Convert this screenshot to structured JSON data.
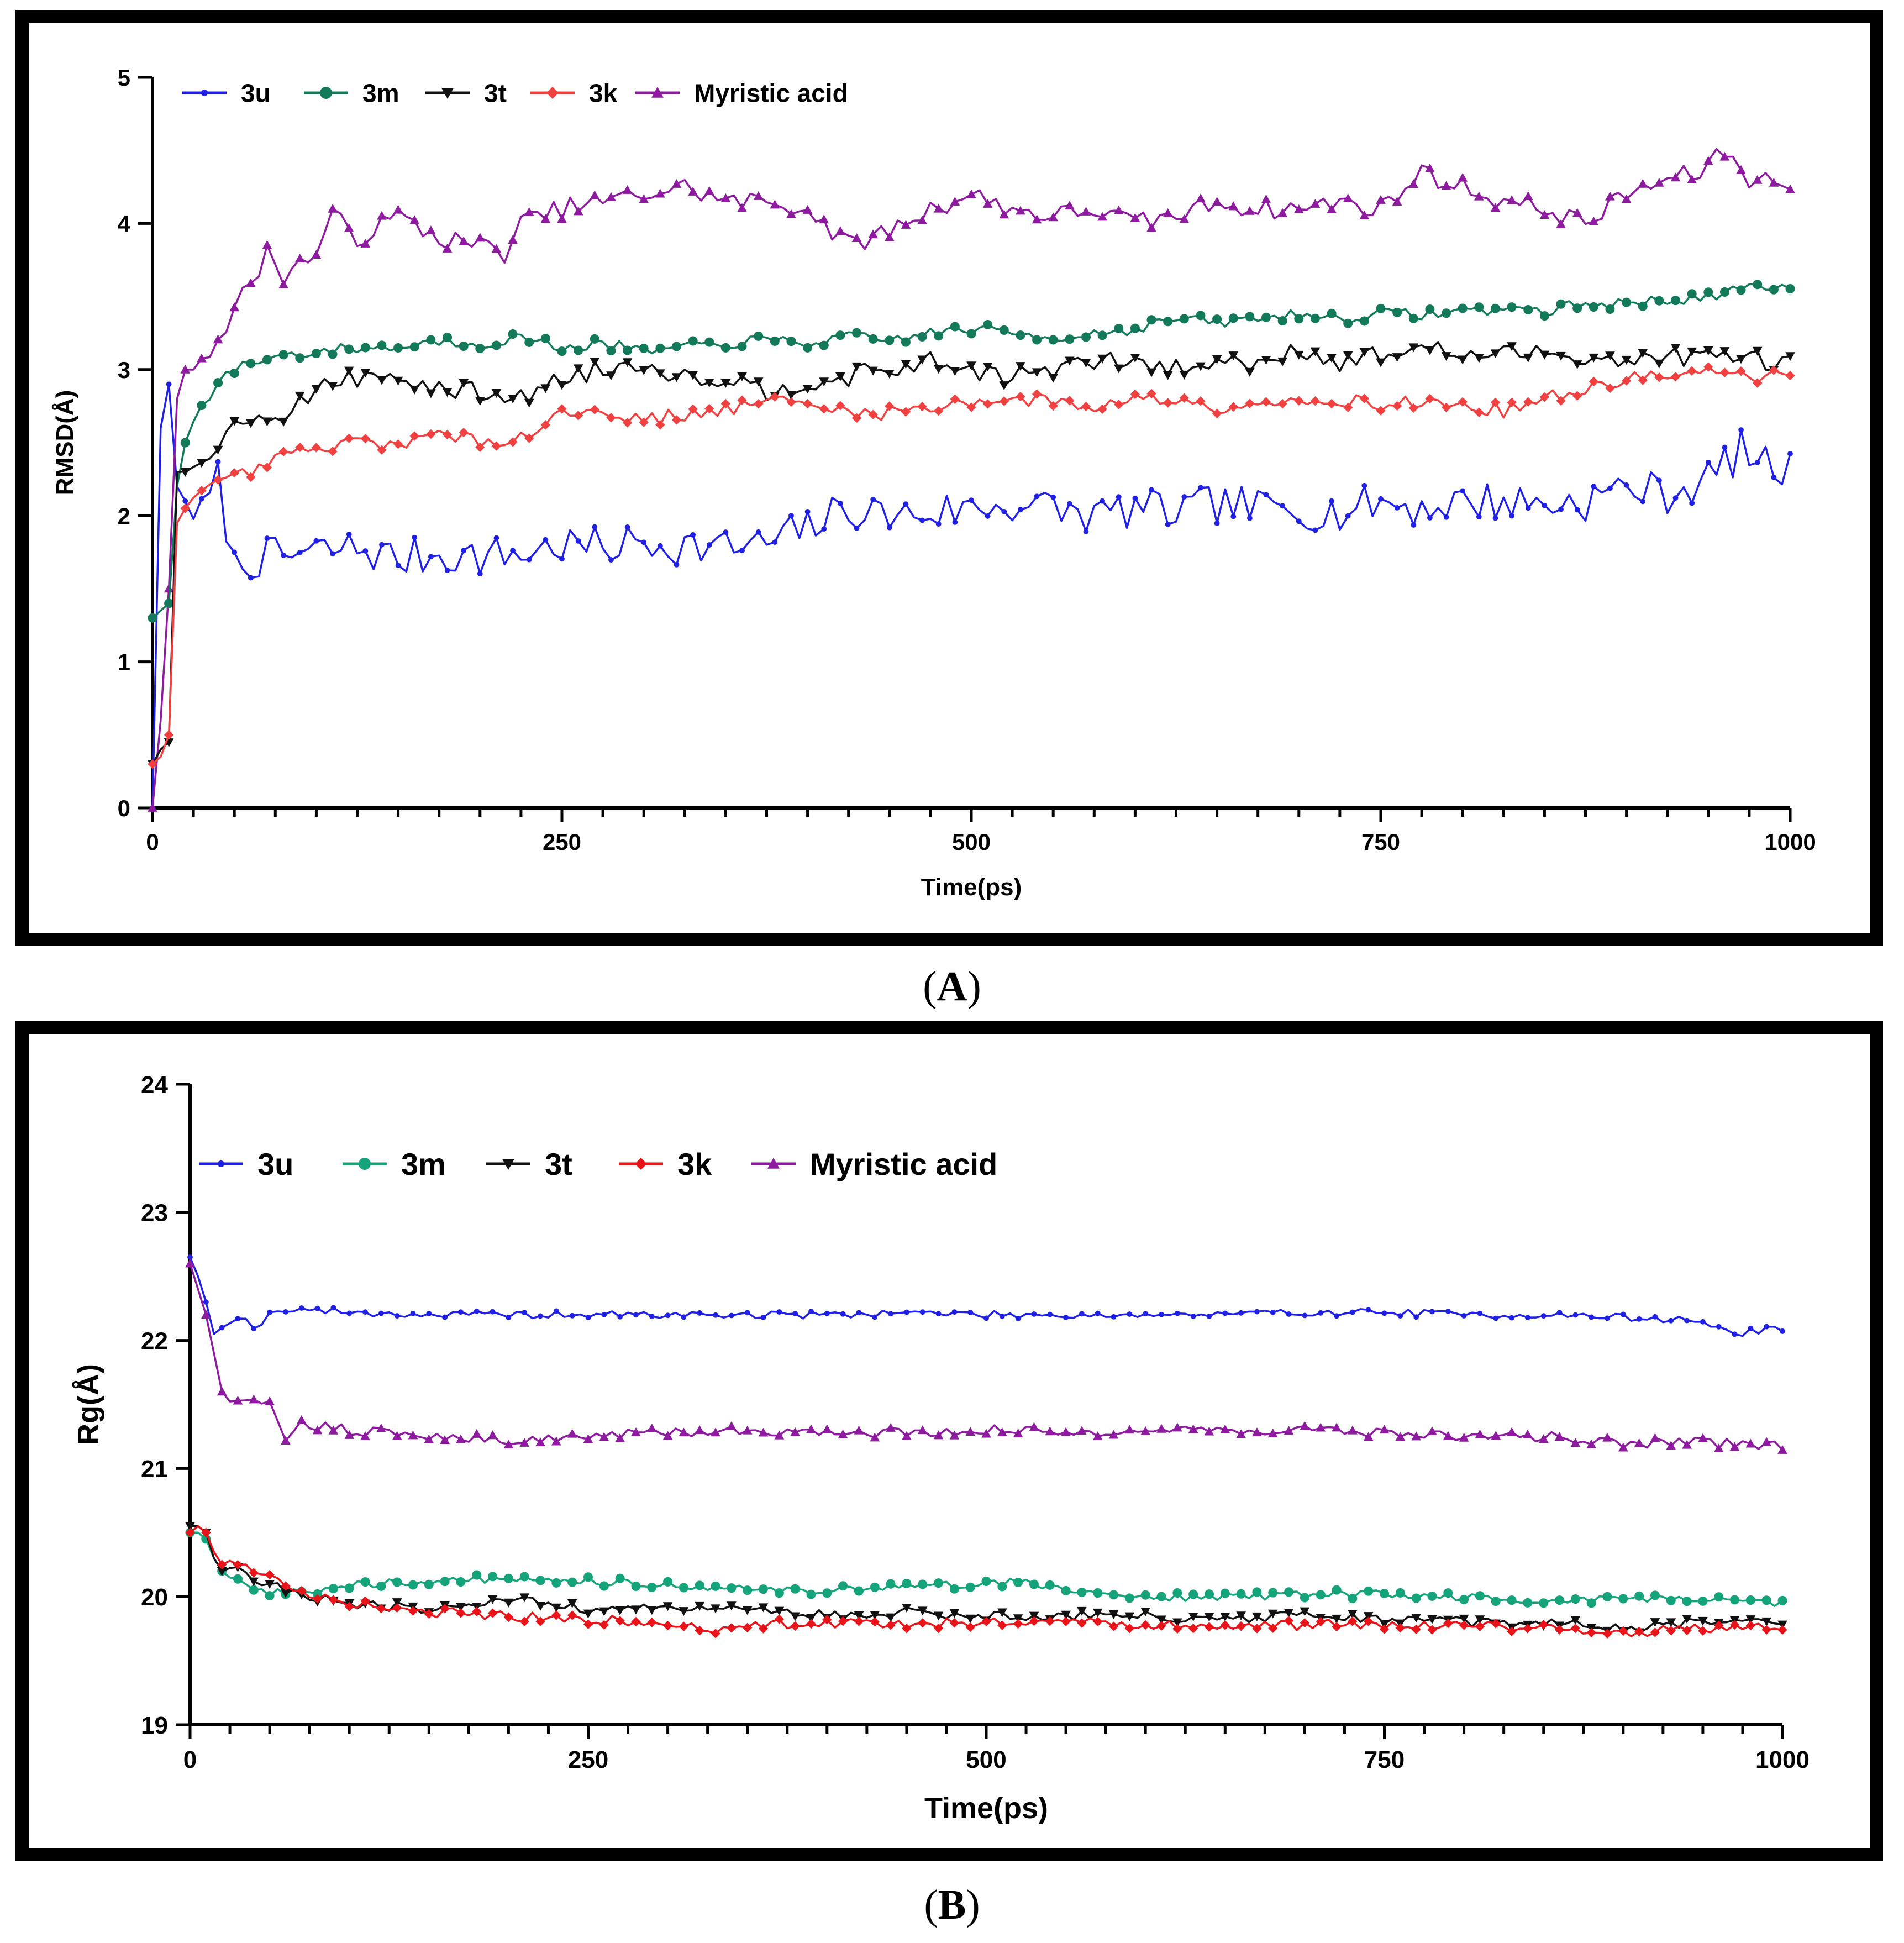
{
  "panels": [
    {
      "label": "A",
      "chart_data": {
        "type": "line",
        "title": "",
        "xlabel": "Time(ps)",
        "ylabel": "RMSD(Å)",
        "xlim": [
          0,
          1000
        ],
        "ylim": [
          0,
          5
        ],
        "xticks": [
          0,
          250,
          500,
          750,
          1000
        ],
        "yticks": [
          0,
          1,
          2,
          3,
          4,
          5
        ],
        "legend_position": "top-left",
        "series": [
          {
            "name": "3u",
            "color": "#1f1fe6",
            "marker": "small-dot",
            "x": [
              0,
              5,
              10,
              15,
              20,
              30,
              40,
              50,
              60,
              80,
              100,
              125,
              150,
              175,
              200,
              225,
              250,
              275,
              300,
              325,
              350,
              375,
              400,
              425,
              450,
              475,
              500,
              525,
              550,
              575,
              600,
              625,
              650,
              675,
              700,
              725,
              750,
              775,
              800,
              825,
              850,
              875,
              900,
              925,
              950,
              970,
              985,
              1000
            ],
            "y": [
              0,
              2.6,
              2.9,
              2.2,
              2.1,
              2.0,
              2.25,
              1.65,
              1.7,
              1.72,
              1.75,
              1.78,
              1.7,
              1.74,
              1.72,
              1.74,
              1.8,
              1.78,
              1.82,
              1.8,
              1.78,
              1.8,
              1.92,
              2.05,
              2.0,
              2.02,
              2.05,
              2.08,
              2.05,
              2.0,
              2.05,
              2.02,
              2.08,
              2.05,
              2.05,
              2.02,
              2.1,
              2.05,
              2.1,
              2.1,
              2.08,
              2.1,
              2.2,
              2.15,
              2.25,
              2.45,
              2.35,
              2.3
            ]
          },
          {
            "name": "3m",
            "color": "#13795b",
            "marker": "circle",
            "x": [
              0,
              5,
              10,
              15,
              20,
              30,
              40,
              50,
              60,
              80,
              100,
              125,
              150,
              175,
              200,
              225,
              250,
              275,
              300,
              325,
              350,
              375,
              400,
              425,
              450,
              475,
              500,
              525,
              550,
              575,
              600,
              625,
              650,
              675,
              700,
              725,
              750,
              775,
              800,
              825,
              850,
              875,
              900,
              925,
              950,
              975,
              1000
            ],
            "y": [
              1.3,
              1.35,
              1.4,
              2.2,
              2.5,
              2.75,
              2.9,
              3.0,
              3.05,
              3.1,
              3.12,
              3.15,
              3.15,
              3.2,
              3.18,
              3.22,
              3.15,
              3.18,
              3.12,
              3.15,
              3.18,
              3.2,
              3.18,
              3.22,
              3.2,
              3.25,
              3.28,
              3.25,
              3.22,
              3.25,
              3.28,
              3.35,
              3.32,
              3.35,
              3.38,
              3.35,
              3.38,
              3.38,
              3.4,
              3.42,
              3.4,
              3.45,
              3.45,
              3.48,
              3.5,
              3.55,
              3.55
            ]
          },
          {
            "name": "3t",
            "color": "#111111",
            "marker": "triangle-down",
            "x": [
              0,
              5,
              10,
              15,
              20,
              30,
              40,
              50,
              60,
              80,
              100,
              125,
              150,
              175,
              200,
              225,
              250,
              275,
              300,
              325,
              350,
              375,
              400,
              425,
              450,
              475,
              500,
              525,
              550,
              575,
              600,
              625,
              650,
              675,
              700,
              725,
              750,
              775,
              800,
              825,
              850,
              875,
              900,
              925,
              950,
              975,
              1000
            ],
            "y": [
              0.3,
              0.4,
              0.45,
              2.3,
              2.3,
              2.4,
              2.5,
              2.6,
              2.7,
              2.7,
              2.85,
              2.95,
              2.95,
              2.85,
              2.85,
              2.8,
              2.95,
              3.0,
              3.05,
              2.95,
              2.95,
              2.85,
              2.92,
              2.95,
              3.0,
              3.05,
              3.0,
              2.95,
              3.0,
              3.05,
              3.05,
              3.0,
              3.05,
              3.05,
              3.15,
              3.05,
              3.1,
              3.15,
              3.1,
              3.1,
              3.12,
              3.1,
              3.05,
              3.1,
              3.08,
              3.08,
              3.05
            ]
          },
          {
            "name": "3k",
            "color": "#f04040",
            "marker": "diamond",
            "x": [
              0,
              5,
              10,
              15,
              20,
              30,
              40,
              50,
              60,
              80,
              100,
              125,
              150,
              175,
              200,
              225,
              250,
              275,
              300,
              325,
              350,
              375,
              400,
              425,
              450,
              475,
              500,
              525,
              550,
              575,
              600,
              625,
              650,
              675,
              700,
              725,
              750,
              775,
              800,
              825,
              850,
              875,
              900,
              925,
              950,
              975,
              1000
            ],
            "y": [
              0.3,
              0.35,
              0.5,
              1.95,
              2.05,
              2.15,
              2.2,
              2.25,
              2.3,
              2.4,
              2.45,
              2.5,
              2.5,
              2.55,
              2.5,
              2.55,
              2.7,
              2.72,
              2.65,
              2.7,
              2.72,
              2.8,
              2.75,
              2.72,
              2.7,
              2.75,
              2.78,
              2.8,
              2.78,
              2.75,
              2.8,
              2.8,
              2.75,
              2.78,
              2.78,
              2.8,
              2.75,
              2.78,
              2.75,
              2.72,
              2.8,
              2.85,
              2.95,
              2.95,
              2.98,
              2.95,
              2.95
            ]
          },
          {
            "name": "Myristic acid",
            "color": "#8e1aa0",
            "marker": "triangle-up",
            "x": [
              0,
              5,
              10,
              15,
              20,
              30,
              40,
              50,
              60,
              70,
              80,
              100,
              110,
              125,
              150,
              175,
              200,
              215,
              225,
              250,
              275,
              300,
              325,
              350,
              375,
              400,
              425,
              450,
              475,
              500,
              525,
              550,
              575,
              600,
              625,
              650,
              675,
              700,
              725,
              750,
              775,
              800,
              825,
              850,
              875,
              900,
              925,
              945,
              960,
              975,
              1000
            ],
            "y": [
              0,
              0.6,
              1.5,
              2.8,
              3.0,
              3.1,
              3.2,
              3.4,
              3.6,
              3.8,
              3.65,
              3.8,
              4.05,
              3.9,
              4.05,
              3.9,
              3.85,
              3.8,
              4.0,
              4.1,
              4.15,
              4.2,
              4.25,
              4.15,
              4.15,
              4.1,
              3.85,
              3.95,
              4.1,
              4.2,
              4.1,
              4.05,
              4.1,
              4.0,
              4.05,
              4.15,
              4.1,
              4.1,
              4.15,
              4.1,
              4.35,
              4.25,
              4.15,
              4.1,
              4.0,
              4.2,
              4.3,
              4.35,
              4.5,
              4.3,
              4.3
            ]
          }
        ]
      }
    },
    {
      "label": "B",
      "chart_data": {
        "type": "line",
        "title": "",
        "xlabel": "Time(ps)",
        "ylabel": "Rg(Å)",
        "xlim": [
          0,
          1000
        ],
        "ylim": [
          19,
          24
        ],
        "xticks": [
          0,
          250,
          500,
          750,
          1000
        ],
        "yticks": [
          19,
          20,
          21,
          22,
          23,
          24
        ],
        "legend_position": "top-left",
        "series": [
          {
            "name": "3u",
            "color": "#1f1fe6",
            "marker": "small-dot",
            "x": [
              0,
              5,
              10,
              15,
              20,
              30,
              40,
              50,
              60,
              100,
              150,
              200,
              250,
              300,
              350,
              400,
              450,
              500,
              550,
              600,
              650,
              700,
              750,
              800,
              850,
              900,
              950,
              970,
              1000
            ],
            "y": [
              22.65,
              22.5,
              22.3,
              22.05,
              22.1,
              22.2,
              22.1,
              22.2,
              22.25,
              22.22,
              22.2,
              22.2,
              22.2,
              22.2,
              22.2,
              22.2,
              22.22,
              22.2,
              22.2,
              22.2,
              22.2,
              22.22,
              22.22,
              22.2,
              22.2,
              22.18,
              22.15,
              22.05,
              22.1
            ]
          },
          {
            "name": "3m",
            "color": "#14a37a",
            "marker": "circle",
            "x": [
              0,
              5,
              10,
              15,
              20,
              30,
              40,
              50,
              60,
              80,
              100,
              150,
              200,
              250,
              300,
              350,
              400,
              450,
              500,
              525,
              550,
              600,
              650,
              700,
              750,
              800,
              850,
              900,
              950,
              1000
            ],
            "y": [
              20.5,
              20.5,
              20.45,
              20.3,
              20.2,
              20.15,
              20.05,
              20.0,
              20.05,
              20.05,
              20.1,
              20.12,
              20.15,
              20.12,
              20.1,
              20.05,
              20.05,
              20.08,
              20.1,
              20.12,
              20.05,
              20.0,
              20.0,
              20.02,
              20.02,
              20.0,
              19.95,
              20.0,
              19.98,
              19.95
            ]
          },
          {
            "name": "3t",
            "color": "#111111",
            "marker": "triangle-down",
            "x": [
              0,
              5,
              10,
              15,
              20,
              30,
              40,
              50,
              60,
              80,
              100,
              150,
              200,
              250,
              300,
              350,
              400,
              450,
              500,
              550,
              600,
              650,
              700,
              750,
              800,
              850,
              900,
              950,
              1000
            ],
            "y": [
              20.55,
              20.55,
              20.5,
              20.3,
              20.2,
              20.2,
              20.15,
              20.1,
              20.05,
              20.0,
              19.95,
              19.9,
              19.98,
              19.9,
              19.9,
              19.92,
              19.85,
              19.88,
              19.85,
              19.85,
              19.85,
              19.82,
              19.85,
              19.82,
              19.8,
              19.8,
              19.75,
              19.8,
              19.8
            ]
          },
          {
            "name": "3k",
            "color": "#e8141a",
            "marker": "diamond",
            "x": [
              0,
              5,
              10,
              15,
              20,
              30,
              40,
              50,
              60,
              80,
              100,
              150,
              200,
              250,
              300,
              330,
              350,
              400,
              450,
              500,
              550,
              600,
              650,
              700,
              750,
              800,
              850,
              900,
              950,
              1000
            ],
            "y": [
              20.5,
              20.55,
              20.5,
              20.35,
              20.25,
              20.25,
              20.2,
              20.15,
              20.1,
              20.0,
              19.95,
              19.88,
              19.85,
              19.82,
              19.8,
              19.72,
              19.78,
              19.8,
              19.78,
              19.8,
              19.8,
              19.78,
              19.75,
              19.78,
              19.78,
              19.78,
              19.75,
              19.72,
              19.75,
              19.75
            ]
          },
          {
            "name": "Myristic acid",
            "color": "#8e1aa0",
            "marker": "triangle-up",
            "x": [
              0,
              5,
              10,
              15,
              20,
              30,
              40,
              50,
              55,
              60,
              70,
              100,
              150,
              200,
              250,
              300,
              350,
              400,
              450,
              500,
              550,
              600,
              650,
              700,
              750,
              800,
              850,
              900,
              950,
              1000
            ],
            "y": [
              22.6,
              22.4,
              22.2,
              21.9,
              21.6,
              21.5,
              21.5,
              21.5,
              21.35,
              21.25,
              21.35,
              21.3,
              21.25,
              21.22,
              21.25,
              21.28,
              21.3,
              21.28,
              21.28,
              21.3,
              21.28,
              21.3,
              21.3,
              21.3,
              21.28,
              21.25,
              21.25,
              21.2,
              21.2,
              21.18
            ]
          }
        ]
      }
    }
  ]
}
